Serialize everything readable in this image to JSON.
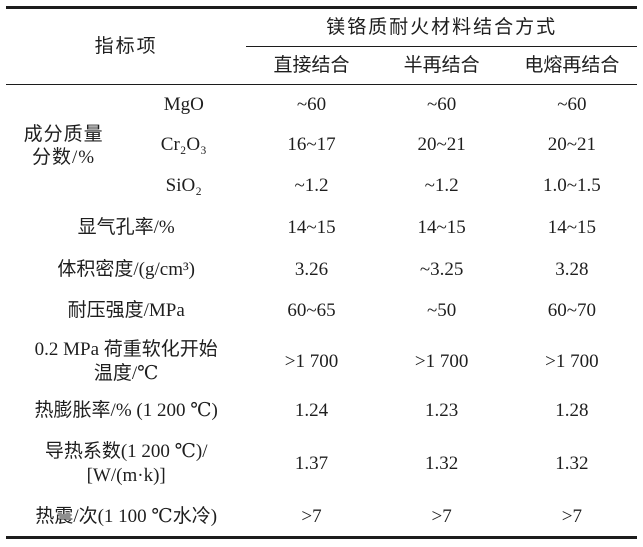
{
  "table": {
    "header": {
      "indicator_col": "指标项",
      "span_header": "镁铬质耐火材料结合方式",
      "bond_types": [
        "直接结合",
        "半再结合",
        "电熔再结合"
      ]
    },
    "composition_group": {
      "label_line1": "成分质量",
      "label_line2": "分数/%",
      "rows": [
        {
          "sub": "MgO",
          "values": [
            "~60",
            "~60",
            "~60"
          ]
        },
        {
          "sub": "Cr₂O₃",
          "values": [
            "16~17",
            "20~21",
            "20~21"
          ]
        },
        {
          "sub": "SiO₂",
          "values": [
            "~1.2",
            "~1.2",
            "1.0~1.5"
          ]
        }
      ]
    },
    "rows": [
      {
        "label": "显气孔率/%",
        "values": [
          "14~15",
          "14~15",
          "14~15"
        ]
      },
      {
        "label": "体积密度/(g/cm³)",
        "values": [
          "3.26",
          "~3.25",
          "3.28"
        ]
      },
      {
        "label": "耐压强度/MPa",
        "values": [
          "60~65",
          "~50",
          "60~70"
        ]
      },
      {
        "label_line1": "0.2 MPa 荷重软化开始",
        "label_line2": "温度/℃",
        "values": [
          ">1 700",
          ">1 700",
          ">1 700"
        ]
      },
      {
        "label": "热膨胀率/% (1 200 ℃)",
        "values": [
          "1.24",
          "1.23",
          "1.28"
        ]
      },
      {
        "label_line1": "导热系数(1 200 ℃)/",
        "label_line2": "[W/(m·k)]",
        "values": [
          "1.37",
          "1.32",
          "1.32"
        ]
      },
      {
        "label": "热震/次(1 100 ℃水冷)",
        "values": [
          ">7",
          ">7",
          ">7"
        ]
      }
    ]
  }
}
